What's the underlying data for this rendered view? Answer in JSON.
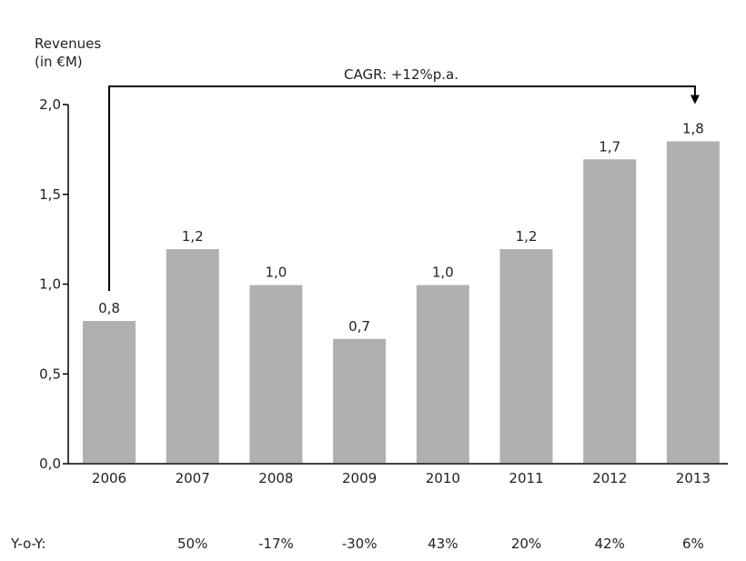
{
  "chart_data": {
    "type": "bar",
    "ylabel_lines": [
      "Revenues",
      "(in €M)"
    ],
    "categories": [
      "2006",
      "2007",
      "2008",
      "2009",
      "2010",
      "2011",
      "2012",
      "2013"
    ],
    "values": [
      0.8,
      1.2,
      1.0,
      0.7,
      1.0,
      1.2,
      1.7,
      1.8
    ],
    "data_labels": [
      "0,8",
      "1,2",
      "1,0",
      "0,7",
      "1,0",
      "1,2",
      "1,7",
      "1,8"
    ],
    "ylim": [
      0,
      2.0
    ],
    "yticks": [
      0,
      0.5,
      1.0,
      1.5,
      2.0
    ],
    "ytick_labels": [
      "0,0",
      "0,5",
      "1,0",
      "1,5",
      "2,0"
    ],
    "grid": false,
    "annotation": {
      "text": "CAGR: +12%p.a.",
      "from_category": "2006",
      "to_category": "2013"
    },
    "yoy": {
      "label": "Y-o-Y:",
      "values": [
        "",
        "50%",
        "-17%",
        "-30%",
        "43%",
        "20%",
        "42%",
        "6%"
      ]
    },
    "colors": {
      "bar": "#b0b0b0",
      "axis": "#000000",
      "text": "#222222"
    }
  }
}
